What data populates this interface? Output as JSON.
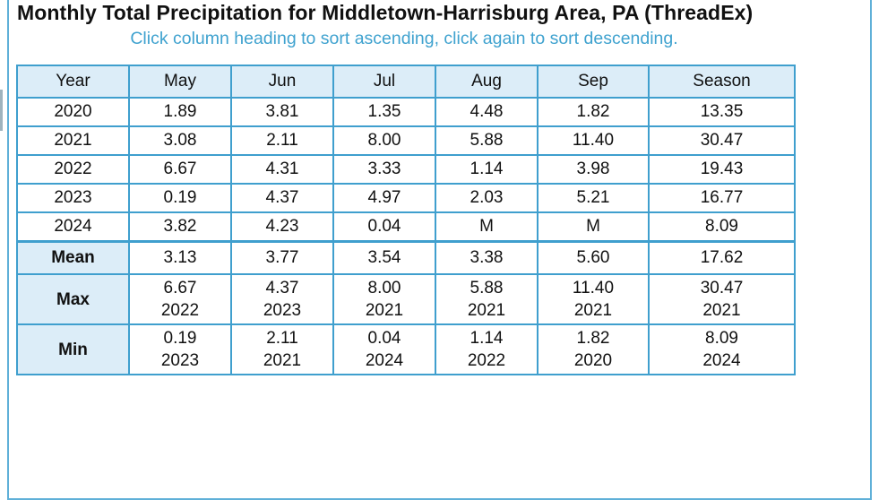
{
  "title": "Monthly Total Precipitation for Middletown-Harrisburg Area, PA (ThreadEx)",
  "subtitle": "Click column heading to sort ascending, click again to sort descending.",
  "colors": {
    "border": "#3f9fce",
    "header_bg": "#dcedf8",
    "subtitle": "#3fa2cf",
    "panel_border": "#5fb0d8"
  },
  "table": {
    "headers": [
      "Year",
      "May",
      "Jun",
      "Jul",
      "Aug",
      "Sep",
      "Season"
    ],
    "rows": [
      [
        "2020",
        "1.89",
        "3.81",
        "1.35",
        "4.48",
        "1.82",
        "13.35"
      ],
      [
        "2021",
        "3.08",
        "2.11",
        "8.00",
        "5.88",
        "11.40",
        "30.47"
      ],
      [
        "2022",
        "6.67",
        "4.31",
        "3.33",
        "1.14",
        "3.98",
        "19.43"
      ],
      [
        "2023",
        "0.19",
        "4.37",
        "4.97",
        "2.03",
        "5.21",
        "16.77"
      ],
      [
        "2024",
        "3.82",
        "4.23",
        "0.04",
        "M",
        "M",
        "8.09"
      ]
    ],
    "summary": {
      "mean": {
        "label": "Mean",
        "values": [
          "3.13",
          "3.77",
          "3.54",
          "3.38",
          "5.60",
          "17.62"
        ]
      },
      "max": {
        "label": "Max",
        "values": [
          "6.67",
          "4.37",
          "8.00",
          "5.88",
          "11.40",
          "30.47"
        ],
        "years": [
          "2022",
          "2023",
          "2021",
          "2021",
          "2021",
          "2021"
        ]
      },
      "min": {
        "label": "Min",
        "values": [
          "0.19",
          "2.11",
          "0.04",
          "1.14",
          "1.82",
          "8.09"
        ],
        "years": [
          "2023",
          "2021",
          "2024",
          "2022",
          "2020",
          "2024"
        ]
      }
    }
  }
}
